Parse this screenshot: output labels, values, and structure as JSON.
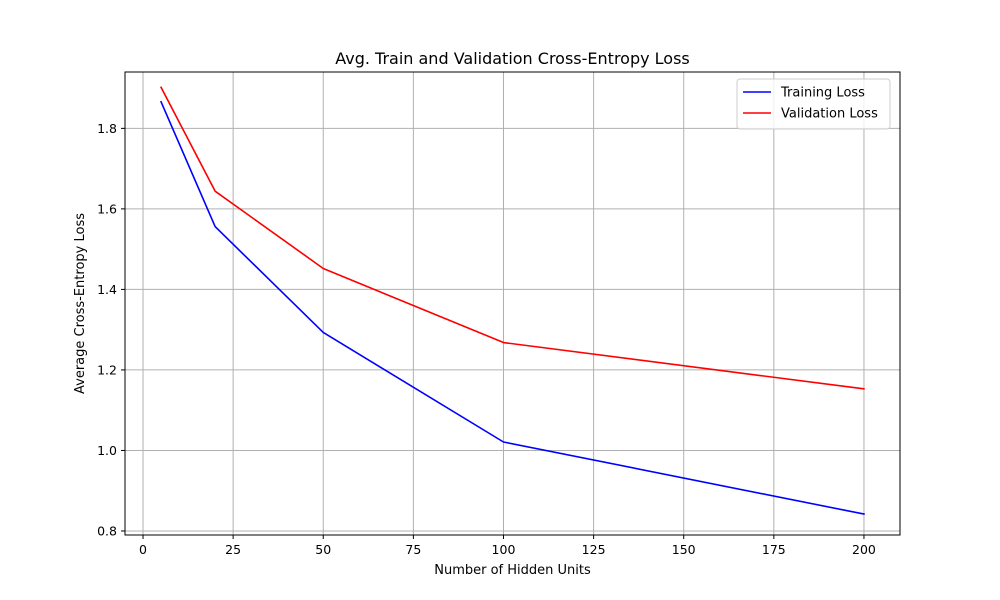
{
  "chart_data": {
    "type": "line",
    "title": "Avg. Train and Validation Cross-Entropy Loss",
    "xlabel": "Number of Hidden Units",
    "ylabel": "Average Cross-Entropy Loss",
    "xlim": [
      -5,
      210
    ],
    "ylim": [
      0.79,
      1.94
    ],
    "xticks": [
      0,
      25,
      50,
      75,
      100,
      125,
      150,
      175,
      200
    ],
    "xtick_labels": [
      "0",
      "25",
      "50",
      "75",
      "100",
      "125",
      "150",
      "175",
      "200"
    ],
    "yticks": [
      0.8,
      1.0,
      1.2,
      1.4,
      1.6,
      1.8
    ],
    "ytick_labels": [
      "0.8",
      "1.0",
      "1.2",
      "1.4",
      "1.6",
      "1.8"
    ],
    "grid": true,
    "legend_position": "top-right",
    "x": [
      5,
      20,
      50,
      100,
      200
    ],
    "series": [
      {
        "name": "Training Loss",
        "color": "#0000ff",
        "values": [
          1.866,
          1.556,
          1.293,
          1.021,
          0.842
        ]
      },
      {
        "name": "Validation Loss",
        "color": "#ff0000",
        "values": [
          1.902,
          1.644,
          1.452,
          1.268,
          1.153
        ]
      }
    ]
  }
}
